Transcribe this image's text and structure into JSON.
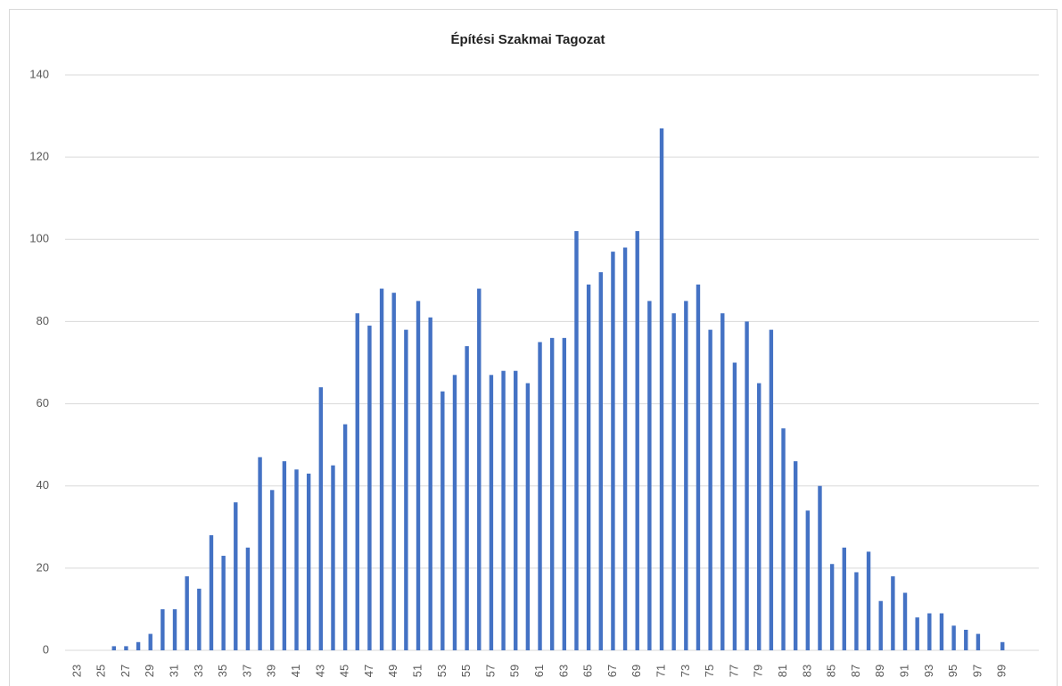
{
  "chart_data": {
    "type": "bar",
    "title": "Építési Szakmai Tagozat",
    "categories": [
      "23",
      null,
      "25",
      null,
      "27",
      null,
      "29",
      null,
      "31",
      null,
      "33",
      null,
      "35",
      null,
      "37",
      null,
      "39",
      null,
      "41",
      null,
      "43",
      null,
      "45",
      null,
      "47",
      null,
      "49",
      null,
      "51",
      null,
      "53",
      null,
      "55",
      null,
      "57",
      null,
      "59",
      null,
      "61",
      null,
      "63",
      null,
      "65",
      null,
      "67",
      null,
      "69",
      null,
      "71",
      null,
      "73",
      null,
      "75",
      null,
      "77",
      null,
      "79",
      null,
      "81",
      null,
      "83",
      null,
      "85",
      null,
      "87",
      null,
      "89",
      null,
      "91",
      null,
      "93",
      null,
      "95",
      null,
      "97",
      null,
      "99",
      null
    ],
    "values": [
      0,
      0,
      0,
      1,
      1,
      2,
      4,
      10,
      10,
      18,
      15,
      28,
      23,
      36,
      25,
      47,
      39,
      46,
      44,
      43,
      64,
      45,
      55,
      82,
      79,
      88,
      87,
      78,
      85,
      81,
      63,
      67,
      74,
      88,
      67,
      68,
      68,
      65,
      75,
      76,
      76,
      102,
      89,
      92,
      97,
      98,
      102,
      85,
      127,
      82,
      85,
      89,
      78,
      82,
      70,
      80,
      65,
      78,
      54,
      46,
      34,
      40,
      21,
      25,
      19,
      24,
      12,
      18,
      14,
      8,
      9,
      9,
      6,
      5,
      4,
      0,
      2,
      0
    ],
    "color": "#4472c4",
    "ylim": [
      0,
      140
    ],
    "yticks": [
      0,
      20,
      40,
      60,
      80,
      100,
      120,
      140
    ],
    "grid": true
  }
}
